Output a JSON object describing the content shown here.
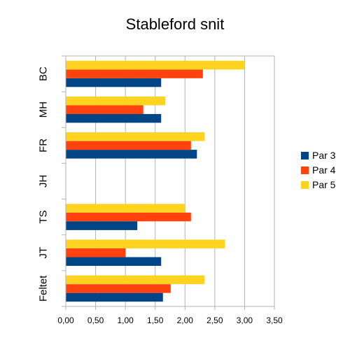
{
  "chart_data": {
    "type": "bar",
    "orientation": "horizontal",
    "title": "Stableford snit",
    "categories": [
      "BC",
      "MH",
      "FR",
      "JH",
      "TS",
      "JT",
      "Feltet"
    ],
    "series": [
      {
        "name": "Par 3",
        "color": "#004586",
        "values": [
          1.6,
          1.6,
          2.2,
          null,
          1.2,
          1.6,
          1.63
        ]
      },
      {
        "name": "Par 4",
        "color": "#ff420e",
        "values": [
          2.3,
          1.3,
          2.1,
          null,
          2.1,
          1.0,
          1.76
        ]
      },
      {
        "name": "Par 5",
        "color": "#ffd320",
        "values": [
          3.0,
          1.67,
          2.33,
          null,
          2.0,
          2.67,
          2.33
        ]
      }
    ],
    "x_ticks": [
      "0,00",
      "0,50",
      "1,00",
      "1,50",
      "2,00",
      "2,50",
      "3,00",
      "3,50"
    ],
    "xlim": [
      0,
      3.5
    ],
    "grid": "vertical",
    "legend_position": "right"
  }
}
